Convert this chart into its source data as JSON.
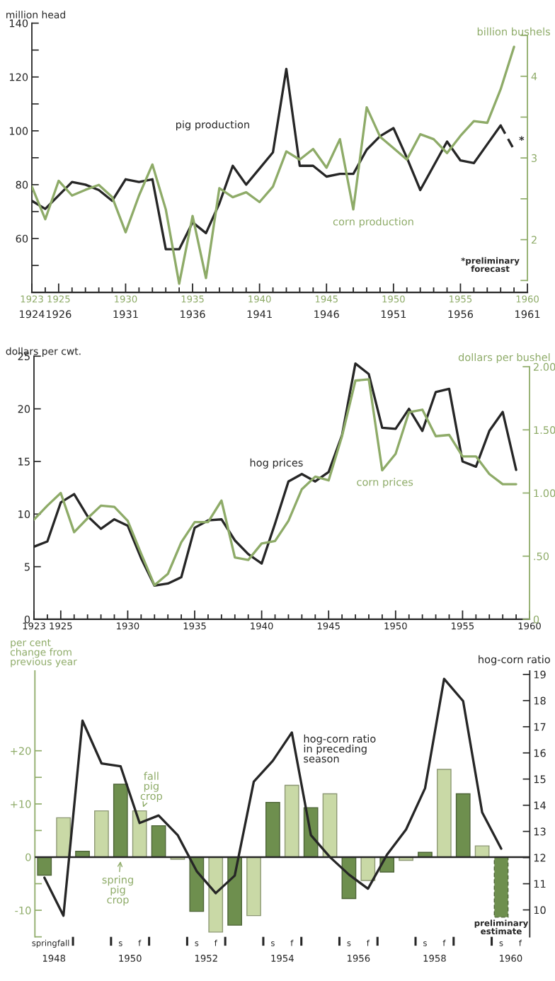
{
  "chart_data": [
    {
      "type": "line",
      "ylabel": "million head",
      "y2label": "billion bushels",
      "xlim": [
        1923,
        1960
      ],
      "x2lim": [
        1924,
        1961
      ],
      "ylim": [
        40,
        140
      ],
      "y2lim": [
        1.355,
        4.65
      ],
      "xticks": [
        1923,
        {
          "value": 1924,
          "label": null
        },
        1925,
        {
          "value": 1926,
          "label": null
        },
        {
          "value": 1927,
          "label": null
        },
        {
          "value": 1928,
          "label": null
        },
        {
          "value": 1929,
          "label": null
        },
        1930,
        {
          "value": 1931,
          "label": null
        },
        {
          "value": 1932,
          "label": null
        },
        {
          "value": 1933,
          "label": null
        },
        {
          "value": 1934,
          "label": null
        },
        1935,
        {
          "value": 1936,
          "label": null
        },
        {
          "value": 1937,
          "label": null
        },
        {
          "value": 1938,
          "label": null
        },
        {
          "value": 1939,
          "label": null
        },
        1940,
        {
          "value": 1941,
          "label": null
        },
        {
          "value": 1942,
          "label": null
        },
        {
          "value": 1943,
          "label": null
        },
        {
          "value": 1944,
          "label": null
        },
        1945,
        {
          "value": 1946,
          "label": null
        },
        {
          "value": 1947,
          "label": null
        },
        {
          "value": 1948,
          "label": null
        },
        {
          "value": 1949,
          "label": null
        },
        1950,
        {
          "value": 1951,
          "label": null
        },
        {
          "value": 1952,
          "label": null
        },
        {
          "value": 1953,
          "label": null
        },
        {
          "value": 1954,
          "label": null
        },
        1955,
        {
          "value": 1956,
          "label": null
        },
        {
          "value": 1957,
          "label": null
        },
        {
          "value": 1958,
          "label": null
        },
        {
          "value": 1959,
          "label": null
        },
        1960
      ],
      "x2ticks": [
        1924,
        1926,
        1931,
        1936,
        1941,
        1946,
        1951,
        1956,
        1961
      ],
      "yticks": [
        {
          "value": 40,
          "label": null
        },
        {
          "value": 50,
          "label": null
        },
        60,
        {
          "value": 70,
          "label": null
        },
        80,
        {
          "value": 90,
          "label": null
        },
        100,
        {
          "value": 110,
          "label": null
        },
        120,
        {
          "value": 130,
          "label": null
        },
        140
      ],
      "y2ticks": [
        {
          "value": 1.5,
          "label": null
        },
        2,
        {
          "value": 2.5,
          "label": null
        },
        3,
        {
          "value": 3.5,
          "label": null
        },
        4,
        {
          "value": 4.5,
          "label": null
        }
      ],
      "series": [
        {
          "name": "pig production",
          "color": "#262626",
          "x": [
            1923,
            1924,
            1925,
            1926,
            1927,
            1928,
            1929,
            1930,
            1931,
            1932,
            1933,
            1934,
            1935,
            1936,
            1937,
            1938,
            1939,
            1940,
            1941,
            1942,
            1943,
            1944,
            1945,
            1946,
            1947,
            1948,
            1949,
            1950,
            1951,
            1952,
            1953,
            1954,
            1955,
            1956,
            1957,
            1958
          ],
          "values": [
            74,
            71,
            76,
            81,
            80,
            78,
            74,
            82,
            81,
            82,
            56,
            56,
            66,
            62,
            73,
            87,
            80,
            86,
            92,
            123,
            87,
            87,
            83,
            84,
            84,
            93,
            98,
            101,
            90,
            78,
            87,
            96,
            89,
            88,
            95,
            102
          ]
        },
        {
          "color": "#262626",
          "line_style": "dashed",
          "x": [
            1958,
            1959
          ],
          "values": [
            102,
            93
          ]
        },
        {
          "name": "corn production",
          "color": "#8eab68",
          "axis": "y2",
          "x": [
            1923,
            1924,
            1925,
            1926,
            1927,
            1928,
            1929,
            1930,
            1931,
            1932,
            1933,
            1934,
            1935,
            1936,
            1937,
            1938,
            1939,
            1940,
            1941,
            1942,
            1943,
            1944,
            1945,
            1946,
            1947,
            1948,
            1949,
            1950,
            1951,
            1952,
            1953,
            1954,
            1955,
            1956,
            1957,
            1958,
            1959
          ],
          "values": [
            2.65,
            2.25,
            2.72,
            2.54,
            2.61,
            2.67,
            2.52,
            2.09,
            2.54,
            2.92,
            2.37,
            1.46,
            2.29,
            1.53,
            2.63,
            2.52,
            2.58,
            2.46,
            2.65,
            3.08,
            2.98,
            3.11,
            2.88,
            3.23,
            2.37,
            3.62,
            3.26,
            3.12,
            2.98,
            3.29,
            3.23,
            3.06,
            3.27,
            3.45,
            3.43,
            3.84,
            4.36
          ]
        }
      ],
      "annotations": [
        {
          "text": "*",
          "x": 1959,
          "y": 93
        },
        "*preliminary\nforecast"
      ]
    },
    {
      "type": "line",
      "ylabel": "dollars per cwt.",
      "y2label": "dollars per bushel",
      "xlim": [
        1923,
        1960
      ],
      "ylim": [
        0,
        25
      ],
      "y2lim": [
        0,
        2.0833
      ],
      "xticks": [
        1923,
        {
          "value": 1924,
          "label": null
        },
        1925,
        {
          "value": 1926,
          "label": null
        },
        {
          "value": 1927,
          "label": null
        },
        {
          "value": 1928,
          "label": null
        },
        {
          "value": 1929,
          "label": null
        },
        1930,
        {
          "value": 1931,
          "label": null
        },
        {
          "value": 1932,
          "label": null
        },
        {
          "value": 1933,
          "label": null
        },
        {
          "value": 1934,
          "label": null
        },
        1935,
        {
          "value": 1936,
          "label": null
        },
        {
          "value": 1937,
          "label": null
        },
        {
          "value": 1938,
          "label": null
        },
        {
          "value": 1939,
          "label": null
        },
        1940,
        {
          "value": 1941,
          "label": null
        },
        {
          "value": 1942,
          "label": null
        },
        {
          "value": 1943,
          "label": null
        },
        {
          "value": 1944,
          "label": null
        },
        1945,
        {
          "value": 1946,
          "label": null
        },
        {
          "value": 1947,
          "label": null
        },
        {
          "value": 1948,
          "label": null
        },
        {
          "value": 1949,
          "label": null
        },
        1950,
        {
          "value": 1951,
          "label": null
        },
        {
          "value": 1952,
          "label": null
        },
        {
          "value": 1953,
          "label": null
        },
        {
          "value": 1954,
          "label": null
        },
        1955,
        {
          "value": 1956,
          "label": null
        },
        {
          "value": 1957,
          "label": null
        },
        {
          "value": 1958,
          "label": null
        },
        {
          "value": 1959,
          "label": null
        },
        1960
      ],
      "yticks": [
        0,
        5,
        10,
        15,
        20,
        25
      ],
      "y2ticks": [
        0,
        {
          "value": 0.5,
          "label": ".50"
        },
        {
          "value": 1,
          "label": "1.00"
        },
        {
          "value": 1.5,
          "label": "1.50"
        },
        {
          "value": 2,
          "label": "2.00"
        }
      ],
      "series": [
        {
          "name": "hog prices",
          "color": "#262626",
          "x": [
            1923,
            1924,
            1925,
            1926,
            1927,
            1928,
            1929,
            1930,
            1931,
            1932,
            1933,
            1934,
            1935,
            1936,
            1937,
            1938,
            1939,
            1940,
            1941,
            1942,
            1943,
            1944,
            1945,
            1946,
            1947,
            1948,
            1949,
            1950,
            1951,
            1952,
            1953,
            1954,
            1955,
            1956,
            1957,
            1958,
            1959
          ],
          "values": [
            6.9,
            7.4,
            11.1,
            11.9,
            9.8,
            8.6,
            9.5,
            8.9,
            5.8,
            3.2,
            3.4,
            4.0,
            8.7,
            9.4,
            9.5,
            7.5,
            6.2,
            5.3,
            9.1,
            13.1,
            13.8,
            13.1,
            14.0,
            17.5,
            24.3,
            23.3,
            18.2,
            18.1,
            20.0,
            17.9,
            21.6,
            21.9,
            15.0,
            14.5,
            17.9,
            19.7,
            14.2
          ]
        },
        {
          "name": "corn prices",
          "color": "#8eab68",
          "axis": "y2",
          "x": [
            1923,
            1924,
            1925,
            1926,
            1927,
            1928,
            1929,
            1930,
            1931,
            1932,
            1933,
            1934,
            1935,
            1936,
            1937,
            1938,
            1939,
            1940,
            1941,
            1942,
            1943,
            1944,
            1945,
            1946,
            1947,
            1948,
            1949,
            1950,
            1951,
            1952,
            1953,
            1954,
            1955,
            1956,
            1957,
            1958,
            1959
          ],
          "values": [
            0.79,
            0.9,
            1.0,
            0.69,
            0.8,
            0.9,
            0.89,
            0.78,
            0.52,
            0.27,
            0.36,
            0.61,
            0.77,
            0.77,
            0.94,
            0.49,
            0.47,
            0.6,
            0.62,
            0.78,
            1.03,
            1.13,
            1.1,
            1.45,
            1.89,
            1.9,
            1.18,
            1.31,
            1.64,
            1.66,
            1.45,
            1.46,
            1.29,
            1.29,
            1.15,
            1.07,
            1.07
          ]
        }
      ]
    },
    {
      "type": "bar",
      "ylabel": "per cent\nchange from\nprevious year",
      "y2label": "hog-corn ratio",
      "categories": [
        "spring",
        "fall",
        null,
        null,
        "s",
        "f",
        null,
        null,
        "s",
        "f",
        null,
        null,
        "s",
        "f",
        null,
        null,
        "s",
        "f",
        null,
        null,
        "s",
        "f",
        null,
        null,
        "s",
        "f"
      ],
      "ylim": [
        -15,
        35
      ],
      "y2lim": [
        8.97,
        19.13
      ],
      "yticks": [
        {
          "value": -15,
          "label": null
        },
        -10,
        {
          "value": -5,
          "label": null
        },
        0,
        {
          "value": 5,
          "label": null
        },
        {
          "value": 10,
          "label": "+10"
        },
        {
          "value": 15,
          "label": null
        },
        {
          "value": 20,
          "label": "+20"
        }
      ],
      "y2ticks": [
        10,
        11,
        12,
        13,
        14,
        15,
        16,
        17,
        18,
        19
      ],
      "ref_lines": [
        {
          "axis": "y",
          "value": 0,
          "color": "#262626"
        }
      ],
      "series": [
        {
          "name": "spring\npig\ncrop",
          "color": "#6e8f4e",
          "values": [
            -3.4,
            null,
            1.1,
            null,
            13.7,
            null,
            5.9,
            null,
            -10.2,
            null,
            -12.8,
            null,
            10.3,
            null,
            9.3,
            null,
            -7.8,
            null,
            -2.8,
            null,
            0.9,
            null,
            11.9,
            null,
            null,
            null
          ]
        },
        {
          "name": "fall\npig\ncrop",
          "color": "#c9d9a6",
          "values": [
            null,
            7.4,
            null,
            8.7,
            null,
            8.7,
            null,
            -0.4,
            null,
            -14.1,
            null,
            -11.0,
            null,
            13.5,
            null,
            11.9,
            null,
            -4.4,
            null,
            -0.6,
            null,
            16.5,
            null,
            2.1,
            null,
            null
          ]
        },
        {
          "color": "#6e8f4e",
          "line_style": "dashed",
          "values": [
            null,
            null,
            null,
            null,
            null,
            null,
            null,
            null,
            null,
            null,
            null,
            null,
            null,
            null,
            null,
            null,
            null,
            null,
            null,
            null,
            null,
            null,
            null,
            null,
            -11.3,
            null
          ]
        },
        {
          "name": "hog-corn ratio\nin preceding\nseason",
          "type": "line",
          "axis": "y2",
          "color": "#262626",
          "values": [
            11.23,
            9.78,
            17.23,
            15.6,
            15.49,
            13.32,
            13.61,
            12.86,
            11.48,
            10.64,
            11.31,
            14.9,
            15.7,
            16.78,
            12.86,
            12.02,
            11.35,
            10.81,
            12.11,
            13.07,
            14.65,
            18.83,
            17.98,
            13.73,
            12.34,
            null
          ]
        }
      ],
      "annotations": [
        "preliminary\nestimate",
        "1948",
        "1950",
        "1952",
        "1954",
        "1956",
        "1958",
        "1960"
      ]
    }
  ]
}
